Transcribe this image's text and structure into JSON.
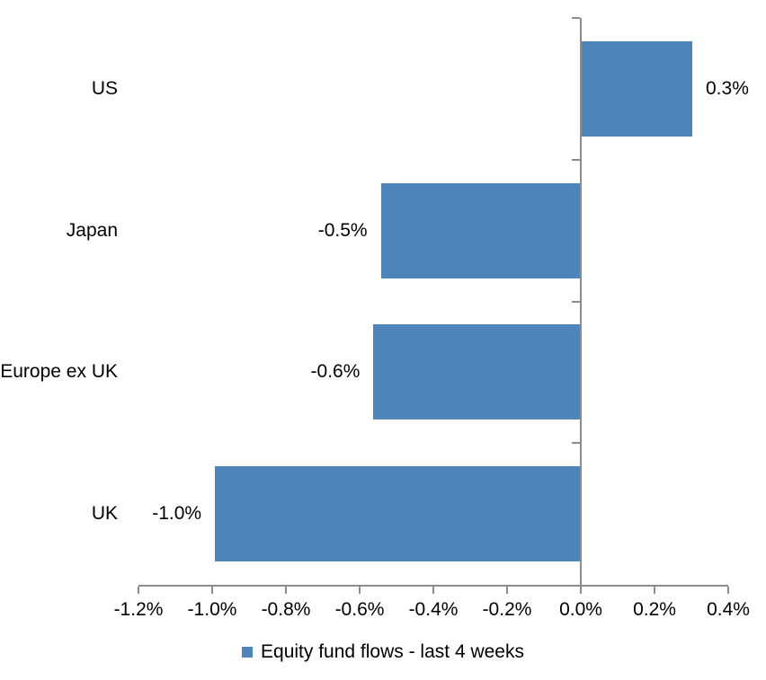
{
  "chart_data": {
    "type": "bar",
    "orientation": "horizontal",
    "title": "",
    "xlabel": "",
    "ylabel": "",
    "categories": [
      "US",
      "Japan",
      "Europe ex UK",
      "UK"
    ],
    "values": [
      0.3,
      -0.5,
      -0.6,
      -1.0
    ],
    "values_plotted_est": [
      0.3,
      -0.54,
      -0.56,
      -0.99
    ],
    "data_labels": [
      "0.3%",
      "-0.5%",
      "-0.6%",
      "-1.0%"
    ],
    "series": [
      {
        "name": "Equity fund flows - last 4 weeks"
      }
    ],
    "legend": [
      "Equity fund flows - last 4 weeks"
    ],
    "legend_position": "bottom",
    "xlim": [
      -1.2,
      0.4
    ],
    "x_tick_step": 0.2,
    "x_tick_labels": [
      "-1.2%",
      "-1.0%",
      "-0.8%",
      "-0.6%",
      "-0.4%",
      "-0.2%",
      "0.0%",
      "0.2%",
      "0.4%"
    ],
    "grid": false,
    "units": "percent",
    "colors": {
      "bar": "#4E86BC",
      "axis": "#8C8C8C",
      "text": "#000000",
      "background": "#FFFFFF"
    }
  }
}
